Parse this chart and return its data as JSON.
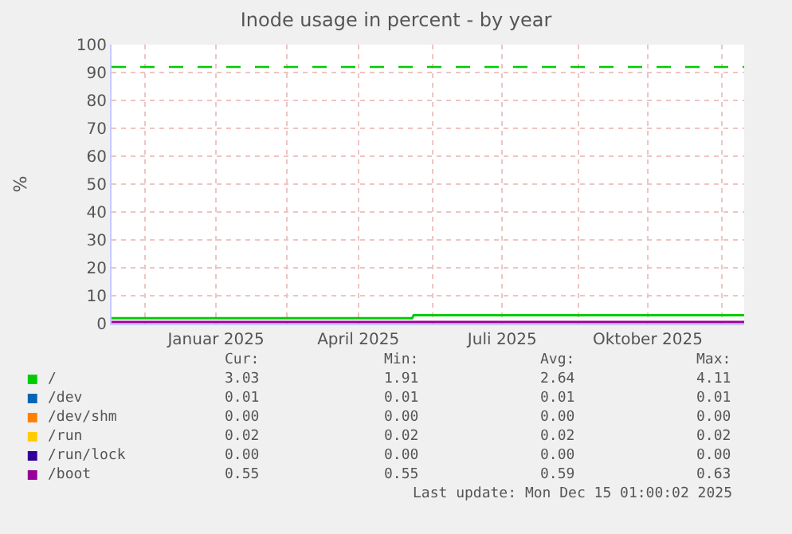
{
  "chart_data": {
    "type": "line",
    "title": "Inode usage in percent - by year",
    "ylabel": "%",
    "xlim": [
      "2024-11-10",
      "2025-12-15"
    ],
    "xticks": [
      {
        "value": "2024-12-01",
        "label": null
      },
      {
        "value": "2025-01-15",
        "label": "Januar 2025"
      },
      {
        "value": "2025-03-01",
        "label": null
      },
      {
        "value": "2025-04-15",
        "label": "April 2025"
      },
      {
        "value": "2025-06-01",
        "label": null
      },
      {
        "value": "2025-07-15",
        "label": "Juli 2025"
      },
      {
        "value": "2025-09-01",
        "label": null
      },
      {
        "value": "2025-10-15",
        "label": "Oktober 2025"
      },
      {
        "value": "2025-12-01",
        "label": null
      }
    ],
    "ylim": [
      0,
      100
    ],
    "yticks": [
      0,
      10,
      20,
      30,
      40,
      50,
      60,
      70,
      80,
      90,
      100
    ],
    "grid": true,
    "legend": "bottom",
    "line_style": "solid",
    "marker": "none",
    "ref_lines": [
      {
        "axis": "y",
        "value": 92,
        "color": "#00cc00",
        "line_style": "dashed"
      }
    ],
    "series": [
      {
        "name": "/",
        "color": "#00cc00",
        "x": [
          "2024-11-10",
          "2025-05-19",
          "2025-05-20",
          "2025-12-15"
        ],
        "values": [
          1.91,
          1.91,
          3.03,
          3.03
        ]
      },
      {
        "name": "/dev",
        "color": "#0066b3",
        "values": [
          null
        ]
      },
      {
        "name": "/dev/shm",
        "color": "#ff8000",
        "values": [
          null
        ]
      },
      {
        "name": "/run",
        "color": "#ffcc00",
        "values": [
          null
        ]
      },
      {
        "name": "/run/lock",
        "color": "#330099",
        "values": [
          null
        ]
      },
      {
        "name": "/boot",
        "color": "#990099",
        "x": [
          "2024-11-10",
          "2025-12-15"
        ],
        "values": [
          0.6,
          0.6
        ]
      }
    ],
    "annotations": [
      "Cur:",
      "Min:",
      "Avg:",
      "Max:",
      "3.03",
      "1.91",
      "2.64",
      "4.11",
      "0.01",
      "0.01",
      "0.01",
      "0.01",
      "0.00",
      "0.00",
      "0.00",
      "0.00",
      "0.02",
      "0.02",
      "0.02",
      "0.02",
      "0.00",
      "0.00",
      "0.00",
      "0.00",
      "0.55",
      "0.55",
      "0.59",
      "0.63",
      "Last update: Mon Dec 15 01:00:02 2025"
    ]
  }
}
